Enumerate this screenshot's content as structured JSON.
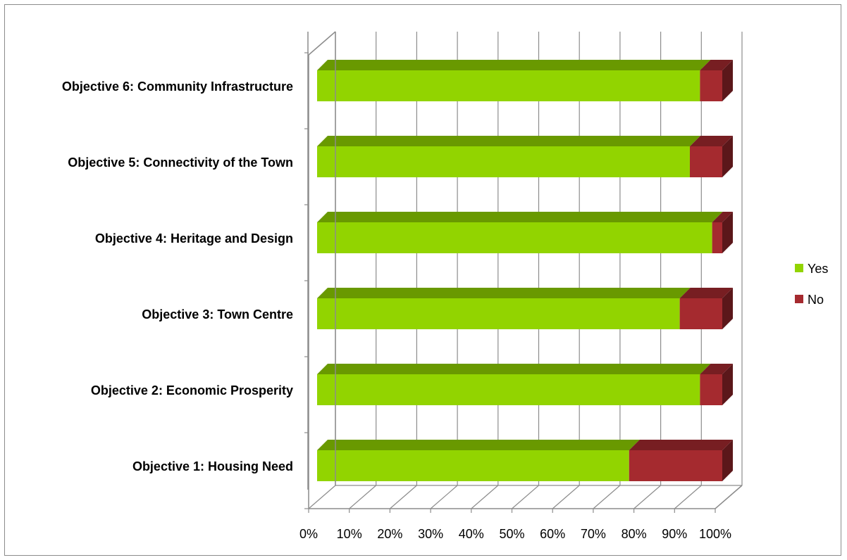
{
  "chart_data": {
    "type": "bar",
    "orientation": "horizontal",
    "stacked": "100%",
    "three_d": true,
    "categories": [
      "Objective 1: Housing Need",
      "Objective 2: Economic Prosperity",
      "Objective 3: Town Centre",
      "Objective 4: Heritage and Design",
      "Objective 5: Connectivity of the Town",
      "Objective 6: Community Infrastructure"
    ],
    "series": [
      {
        "name": "Yes",
        "color": "#92d400",
        "values": [
          77,
          94.5,
          89.5,
          97.5,
          92,
          94.5
        ]
      },
      {
        "name": "No",
        "color": "#a52a2f",
        "values": [
          23,
          5.5,
          10.5,
          2.5,
          8,
          5.5
        ]
      }
    ],
    "x_ticks": [
      "0%",
      "10%",
      "20%",
      "30%",
      "40%",
      "50%",
      "60%",
      "70%",
      "80%",
      "90%",
      "100%"
    ],
    "xlim": [
      0,
      100
    ],
    "title": "",
    "xlabel": "",
    "ylabel": "",
    "grid": true,
    "legend_position": "right"
  }
}
